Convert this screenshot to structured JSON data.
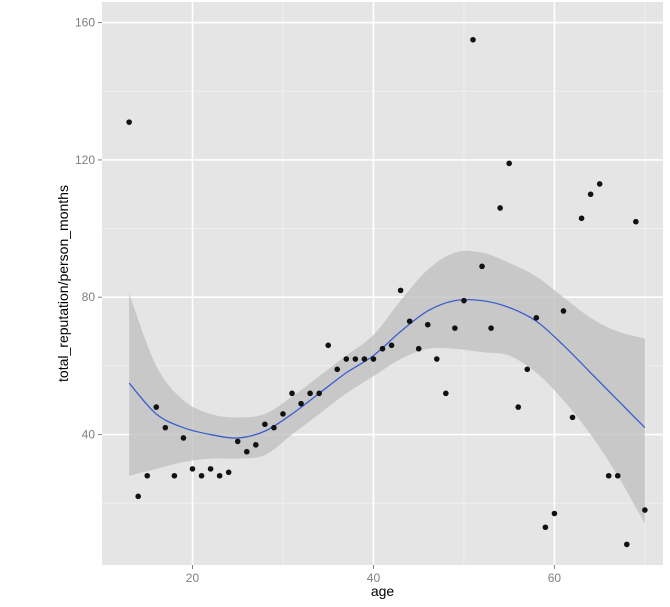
{
  "chart_data": {
    "type": "scatter",
    "xlabel": "age",
    "ylabel": "total_reputation/person_months",
    "xlim": [
      10,
      72
    ],
    "ylim": [
      2,
      166
    ],
    "x_ticks": [
      20,
      40,
      60
    ],
    "y_ticks": [
      40,
      80,
      120,
      160
    ],
    "grid": true,
    "colors": {
      "panel": "#e5e5e5",
      "grid_major": "#ffffff",
      "point": "#111111",
      "smooth_line": "#3a5fcd",
      "ribbon": "#bdbdbd"
    },
    "points": [
      {
        "x": 13,
        "y": 131
      },
      {
        "x": 14,
        "y": 22
      },
      {
        "x": 15,
        "y": 28
      },
      {
        "x": 16,
        "y": 48
      },
      {
        "x": 17,
        "y": 42
      },
      {
        "x": 18,
        "y": 28
      },
      {
        "x": 19,
        "y": 39
      },
      {
        "x": 20,
        "y": 30
      },
      {
        "x": 21,
        "y": 28
      },
      {
        "x": 22,
        "y": 30
      },
      {
        "x": 23,
        "y": 28
      },
      {
        "x": 24,
        "y": 29
      },
      {
        "x": 25,
        "y": 38
      },
      {
        "x": 26,
        "y": 35
      },
      {
        "x": 27,
        "y": 37
      },
      {
        "x": 28,
        "y": 43
      },
      {
        "x": 29,
        "y": 42
      },
      {
        "x": 30,
        "y": 46
      },
      {
        "x": 31,
        "y": 52
      },
      {
        "x": 32,
        "y": 49
      },
      {
        "x": 33,
        "y": 52
      },
      {
        "x": 34,
        "y": 52
      },
      {
        "x": 35,
        "y": 66
      },
      {
        "x": 36,
        "y": 59
      },
      {
        "x": 37,
        "y": 62
      },
      {
        "x": 38,
        "y": 62
      },
      {
        "x": 39,
        "y": 62
      },
      {
        "x": 40,
        "y": 62
      },
      {
        "x": 41,
        "y": 65
      },
      {
        "x": 42,
        "y": 66
      },
      {
        "x": 43,
        "y": 82
      },
      {
        "x": 44,
        "y": 73
      },
      {
        "x": 45,
        "y": 65
      },
      {
        "x": 46,
        "y": 72
      },
      {
        "x": 47,
        "y": 62
      },
      {
        "x": 48,
        "y": 52
      },
      {
        "x": 49,
        "y": 71
      },
      {
        "x": 50,
        "y": 79
      },
      {
        "x": 51,
        "y": 155
      },
      {
        "x": 52,
        "y": 89
      },
      {
        "x": 53,
        "y": 71
      },
      {
        "x": 54,
        "y": 106
      },
      {
        "x": 55,
        "y": 119
      },
      {
        "x": 56,
        "y": 48
      },
      {
        "x": 57,
        "y": 59
      },
      {
        "x": 58,
        "y": 74
      },
      {
        "x": 59,
        "y": 13
      },
      {
        "x": 60,
        "y": 17
      },
      {
        "x": 61,
        "y": 76
      },
      {
        "x": 62,
        "y": 45
      },
      {
        "x": 63,
        "y": 103
      },
      {
        "x": 64,
        "y": 110
      },
      {
        "x": 65,
        "y": 113
      },
      {
        "x": 66,
        "y": 28
      },
      {
        "x": 67,
        "y": 28
      },
      {
        "x": 68,
        "y": 8
      },
      {
        "x": 69,
        "y": 102
      },
      {
        "x": 70,
        "y": 18
      }
    ],
    "smooth": {
      "x": [
        13,
        16,
        19,
        22,
        25,
        28,
        31,
        34,
        37,
        40,
        43,
        46,
        49,
        52,
        55,
        58,
        61,
        64,
        67,
        70
      ],
      "y": [
        55,
        46,
        42,
        40,
        39,
        41,
        46,
        52,
        58,
        63,
        70,
        76,
        79,
        79,
        77,
        73,
        66,
        58,
        50,
        42
      ],
      "upper": [
        81,
        60,
        50,
        46,
        45,
        46,
        51,
        57,
        63,
        69,
        79,
        88,
        93,
        93,
        90,
        86,
        80,
        74,
        70,
        68
      ],
      "lower": [
        28,
        30,
        32,
        33,
        33,
        34,
        40,
        46,
        52,
        57,
        62,
        65,
        65,
        64,
        63,
        58,
        50,
        40,
        28,
        14
      ]
    }
  }
}
